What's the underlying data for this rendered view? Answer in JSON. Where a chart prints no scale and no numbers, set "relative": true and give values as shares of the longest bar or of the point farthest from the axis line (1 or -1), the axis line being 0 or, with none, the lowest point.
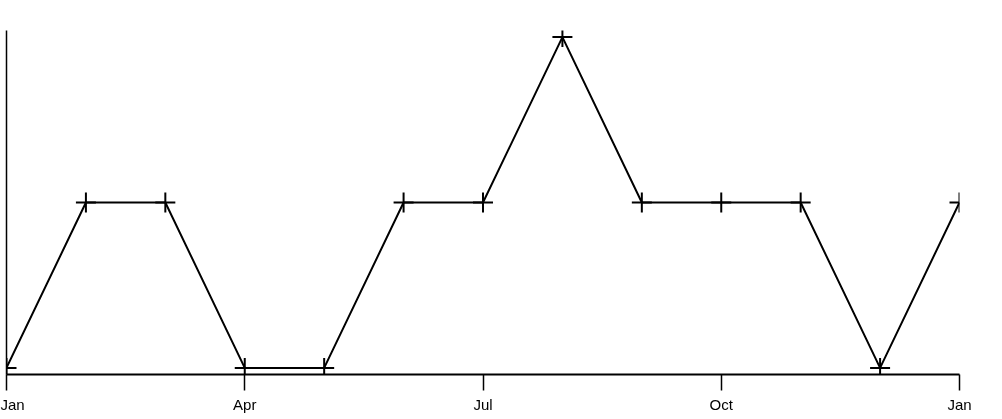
{
  "chart_data": {
    "type": "line",
    "relative": true,
    "categories": [
      "Jan",
      null,
      null,
      "Apr",
      null,
      null,
      "Jul",
      null,
      null,
      "Oct",
      null,
      null,
      "Jan"
    ],
    "series": [
      {
        "color": "#000000",
        "values": [
          0,
          0.5,
          0.5,
          0,
          0,
          0.5,
          0.5,
          1,
          0.5,
          0.5,
          0.5,
          0,
          0.5
        ]
      }
    ],
    "marker": "cross",
    "line_style": "solid"
  }
}
